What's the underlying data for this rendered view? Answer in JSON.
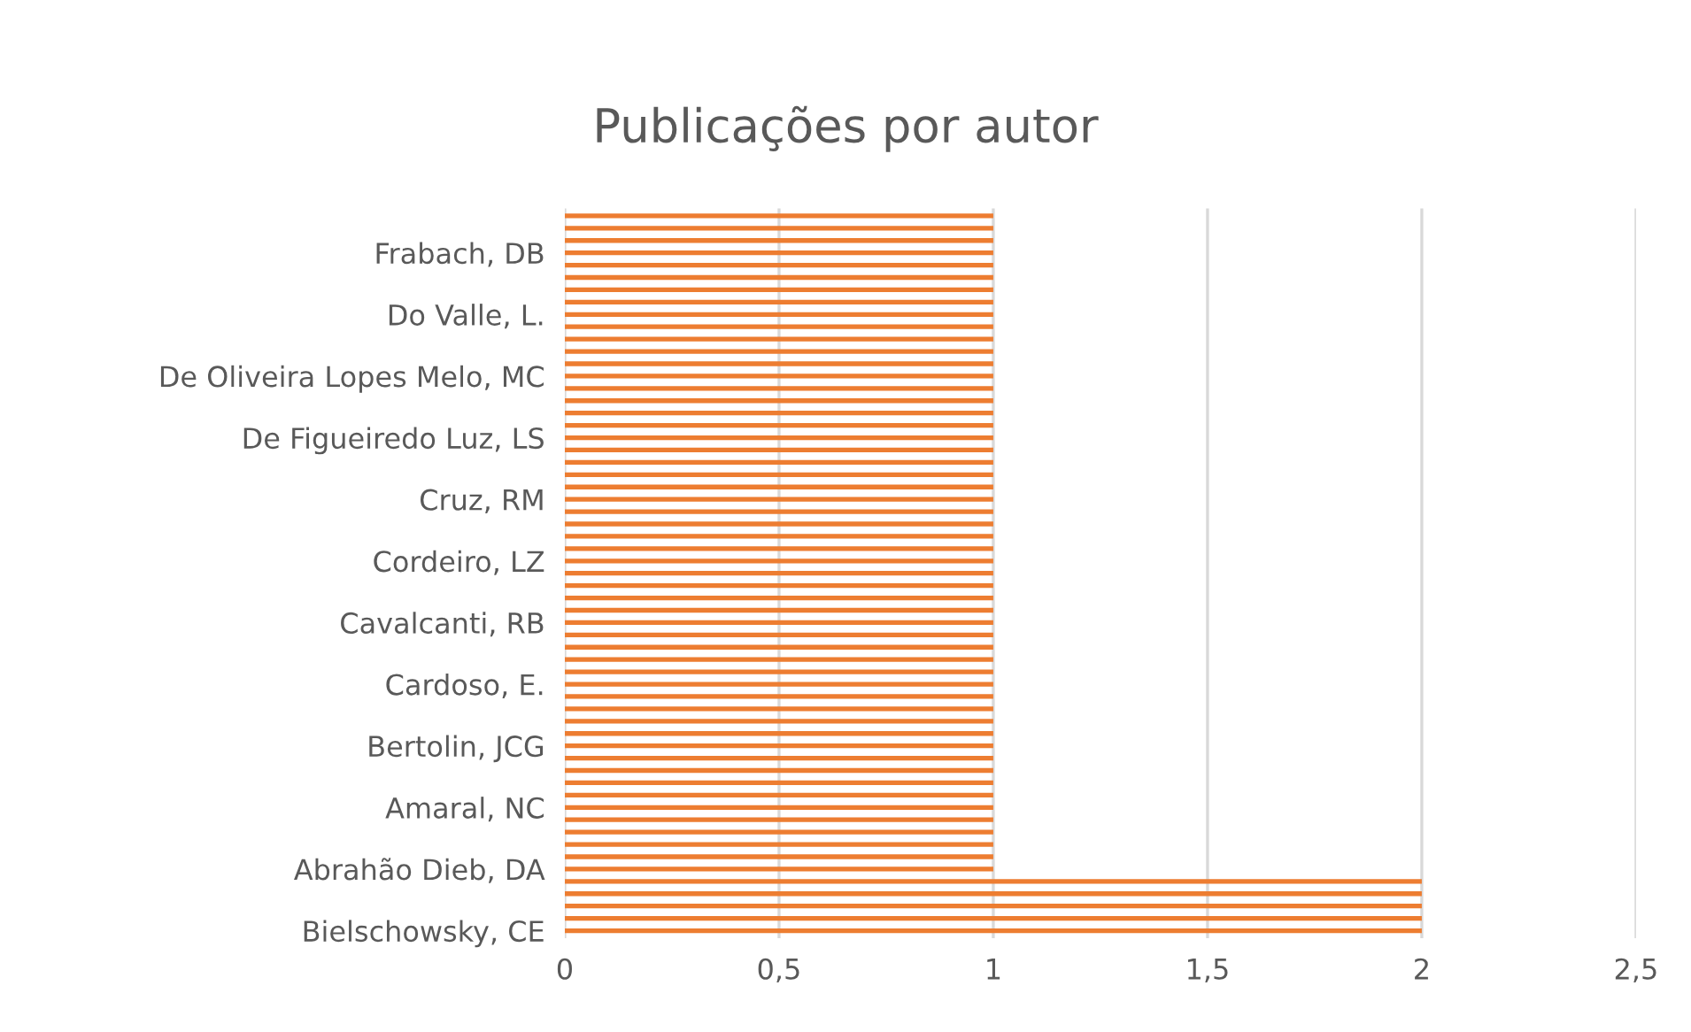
{
  "chart_data": {
    "type": "bar",
    "orientation": "horizontal",
    "title": "Publicações por autor",
    "categories": [
      null,
      null,
      null,
      "Frabach, DB",
      null,
      null,
      null,
      null,
      "Do Valle, L.",
      null,
      null,
      null,
      null,
      "De Oliveira Lopes Melo, MC",
      null,
      null,
      null,
      null,
      "De Figueiredo Luz, LS",
      null,
      null,
      null,
      null,
      "Cruz, RM",
      null,
      null,
      null,
      null,
      "Cordeiro, LZ",
      null,
      null,
      null,
      null,
      "Cavalcanti, RB",
      null,
      null,
      null,
      null,
      "Cardoso, E.",
      null,
      null,
      null,
      null,
      "Bertolin, JCG",
      null,
      null,
      null,
      null,
      "Amaral, NC",
      null,
      null,
      null,
      null,
      "Abrahão Dieb, DA",
      null,
      null,
      null,
      null,
      "Bielschowsky, CE"
    ],
    "values": [
      1,
      1,
      1,
      1,
      1,
      1,
      1,
      1,
      1,
      1,
      1,
      1,
      1,
      1,
      1,
      1,
      1,
      1,
      1,
      1,
      1,
      1,
      1,
      1,
      1,
      1,
      1,
      1,
      1,
      1,
      1,
      1,
      1,
      1,
      1,
      1,
      1,
      1,
      1,
      1,
      1,
      1,
      1,
      1,
      1,
      1,
      1,
      1,
      1,
      1,
      1,
      1,
      1,
      1,
      2,
      2,
      2,
      2,
      2
    ],
    "color": "#ed7d31",
    "xlim": [
      0,
      2.5
    ],
    "xticks": [
      {
        "value": 0,
        "label": "0"
      },
      {
        "value": 0.5,
        "label": "0,5"
      },
      {
        "value": 1,
        "label": "1"
      },
      {
        "value": 1.5,
        "label": "1,5"
      },
      {
        "value": 2,
        "label": "2"
      },
      {
        "value": 2.5,
        "label": "2,5"
      }
    ],
    "grid": "x",
    "legend": false
  }
}
